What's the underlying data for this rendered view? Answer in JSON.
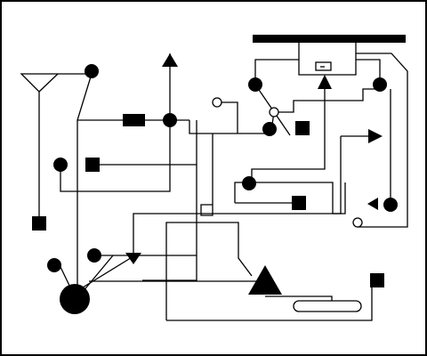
{
  "diagram": {
    "frame_color": "#000000",
    "background": "#ffffff",
    "line_color": "#000000",
    "components": [
      {
        "name": "bus-bar",
        "icon": "thick-bar"
      },
      {
        "name": "large-node",
        "icon": "filled-circle-large"
      },
      {
        "name": "triangle-up-small",
        "icon": "arrow-up"
      },
      {
        "name": "triangle-up-large",
        "icon": "filled-triangle"
      },
      {
        "name": "triangle-down",
        "icon": "arrow-down"
      },
      {
        "name": "triangle-right",
        "icon": "arrow-right"
      },
      {
        "name": "triangle-left",
        "icon": "arrow-left"
      },
      {
        "name": "capsule",
        "icon": "rounded-rectangle"
      }
    ]
  }
}
